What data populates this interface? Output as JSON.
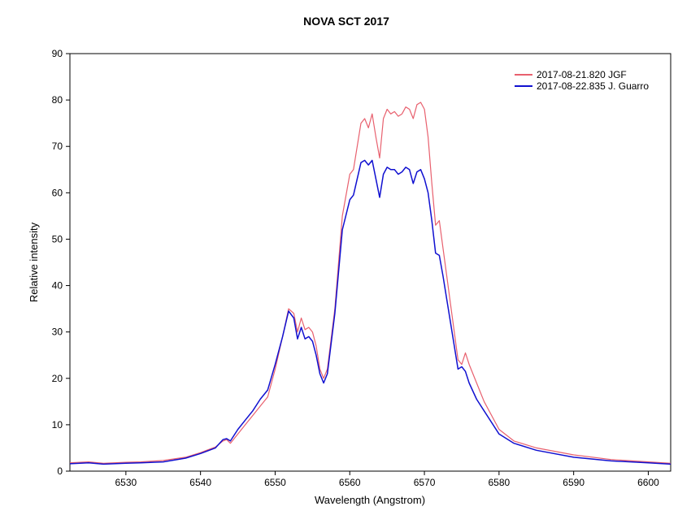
{
  "chart_data": {
    "type": "line",
    "title": "NOVA SCT 2017",
    "xlabel": "Wavelength (Angstrom)",
    "ylabel": "Relative intensity",
    "xlim": [
      6522.5,
      6603
    ],
    "ylim": [
      0,
      90
    ],
    "xticks": [
      6530,
      6540,
      6550,
      6560,
      6570,
      6580,
      6590,
      6600
    ],
    "yticks": [
      0,
      10,
      20,
      30,
      40,
      50,
      60,
      70,
      80,
      90
    ],
    "grid": false,
    "legend_position": "top-right",
    "series": [
      {
        "name": "2017-08-21.820  JGF",
        "color": "#e8606e",
        "x": [
          6522.5,
          6525,
          6527,
          6530,
          6532,
          6535,
          6538,
          6540,
          6542,
          6543,
          6543.5,
          6544,
          6545,
          6546,
          6547,
          6548,
          6549,
          6550,
          6551,
          6551.8,
          6552.5,
          6553,
          6553.5,
          6554,
          6554.5,
          6555,
          6555.5,
          6556,
          6556.5,
          6557,
          6558,
          6559,
          6560,
          6560.5,
          6561,
          6561.5,
          6562,
          6562.5,
          6563,
          6563.5,
          6564,
          6564.5,
          6565,
          6565.5,
          6566,
          6566.5,
          6567,
          6567.5,
          6568,
          6568.5,
          6569,
          6569.5,
          6570,
          6570.5,
          6571,
          6571.5,
          6572,
          6572.5,
          6573,
          6573.5,
          6574,
          6574.5,
          6575,
          6575.5,
          6576,
          6577,
          6578,
          6580,
          6582,
          6585,
          6590,
          6595,
          6600,
          6603
        ],
        "y": [
          1.8,
          2.0,
          1.7,
          1.9,
          2.0,
          2.3,
          3.0,
          4.0,
          5.2,
          6.5,
          6.8,
          6.0,
          8.0,
          10.0,
          12.0,
          14.0,
          16.0,
          22.0,
          29.0,
          35.0,
          34.0,
          30.0,
          33.0,
          30.5,
          31.0,
          30.0,
          27.0,
          22.0,
          20.0,
          22.0,
          35.0,
          55.0,
          64.0,
          65.0,
          70.0,
          75.0,
          76.0,
          74.0,
          77.0,
          72.0,
          67.5,
          76.0,
          78.0,
          77.0,
          77.5,
          76.5,
          77.0,
          78.5,
          78.0,
          76.0,
          79.0,
          79.5,
          78.0,
          72.0,
          62.0,
          53.0,
          54.0,
          48.0,
          42.0,
          36.0,
          30.0,
          24.0,
          23.0,
          25.5,
          23.0,
          19.0,
          15.0,
          9.0,
          6.5,
          5.0,
          3.5,
          2.5,
          2.0,
          1.7
        ]
      },
      {
        "name": "2017-08-22.835  J. Guarro",
        "color": "#1010d0",
        "x": [
          6522.5,
          6525,
          6527,
          6530,
          6532,
          6535,
          6538,
          6540,
          6542,
          6543,
          6543.5,
          6544,
          6545,
          6546,
          6547,
          6548,
          6549,
          6550,
          6551,
          6551.8,
          6552.5,
          6553,
          6553.5,
          6554,
          6554.5,
          6555,
          6555.5,
          6556,
          6556.5,
          6557,
          6558,
          6559,
          6560,
          6560.5,
          6561,
          6561.5,
          6562,
          6562.5,
          6563,
          6563.5,
          6564,
          6564.5,
          6565,
          6565.5,
          6566,
          6566.5,
          6567,
          6567.5,
          6568,
          6568.5,
          6569,
          6569.5,
          6570,
          6570.5,
          6571,
          6571.5,
          6572,
          6572.5,
          6573,
          6573.5,
          6574,
          6574.5,
          6575,
          6575.5,
          6576,
          6577,
          6578,
          6580,
          6582,
          6585,
          6590,
          6595,
          6600,
          6603
        ],
        "y": [
          1.6,
          1.8,
          1.5,
          1.7,
          1.8,
          2.0,
          2.8,
          3.8,
          5.0,
          6.8,
          7.0,
          6.5,
          9.0,
          11.0,
          13.0,
          15.5,
          17.5,
          23.0,
          29.0,
          34.5,
          33.0,
          28.5,
          31.0,
          28.5,
          29.0,
          28.0,
          25.0,
          21.0,
          19.0,
          21.0,
          34.0,
          52.0,
          58.5,
          59.5,
          63.0,
          66.5,
          67.0,
          66.0,
          67.0,
          63.0,
          59.0,
          64.0,
          65.5,
          65.0,
          65.0,
          64.0,
          64.5,
          65.5,
          65.0,
          62.0,
          64.5,
          65.0,
          63.0,
          60.0,
          54.0,
          47.0,
          46.5,
          42.0,
          37.0,
          32.0,
          27.0,
          22.0,
          22.5,
          21.5,
          19.0,
          15.5,
          13.0,
          8.0,
          6.0,
          4.5,
          3.0,
          2.2,
          1.8,
          1.5
        ]
      }
    ]
  }
}
